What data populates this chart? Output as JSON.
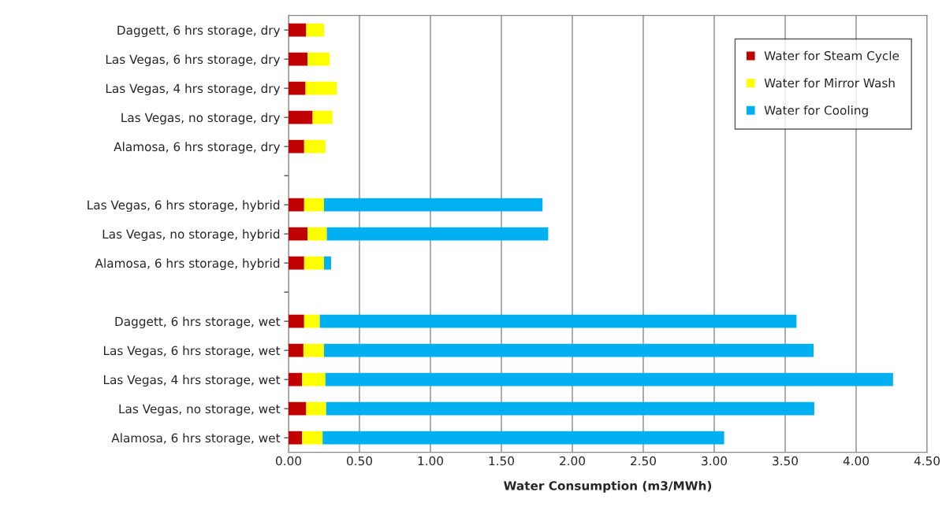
{
  "chart_data": {
    "type": "bar",
    "orientation": "horizontal",
    "stacked": true,
    "xlabel": "Water Consumption (m3/MWh)",
    "categories": [
      "Daggett, 6 hrs storage, dry",
      "Las Vegas, 6 hrs storage, dry",
      "Las Vegas, 4 hrs storage, dry",
      "Las Vegas, no storage, dry",
      "Alamosa, 6 hrs storage, dry",
      null,
      "Las Vegas, 6 hrs storage, hybrid",
      "Las Vegas, no storage, hybrid",
      "Alamosa, 6 hrs storage, hybrid",
      null,
      "Daggett, 6 hrs storage, wet",
      "Las Vegas, 6 hrs storage, wet",
      "Las Vegas, 4 hrs storage, wet",
      "Las Vegas, no storage, wet",
      "Alamosa, 6 hrs storage, wet"
    ],
    "series": [
      {
        "name": "Water for Steam Cycle",
        "color": "#c00000",
        "values": [
          0.125,
          0.135,
          0.12,
          0.17,
          0.11,
          null,
          0.11,
          0.135,
          0.11,
          null,
          0.11,
          0.105,
          0.095,
          0.125,
          0.095
        ]
      },
      {
        "name": "Water for Mirror Wash",
        "color": "#ffff00",
        "values": [
          0.125,
          0.155,
          0.22,
          0.14,
          0.15,
          null,
          0.14,
          0.135,
          0.14,
          null,
          0.11,
          0.145,
          0.165,
          0.14,
          0.145
        ]
      },
      {
        "name": "Water for Cooling",
        "color": "#00b0f0",
        "values": [
          null,
          null,
          null,
          null,
          null,
          null,
          1.54,
          1.56,
          0.05,
          null,
          3.36,
          3.45,
          4.0,
          3.44,
          2.83
        ]
      }
    ],
    "xlim": [
      0,
      4.5
    ],
    "xticks": [
      {
        "value": 0,
        "label": "0.00"
      },
      {
        "value": 0.5,
        "label": "0.50"
      },
      {
        "value": 1,
        "label": "1.00"
      },
      {
        "value": 1.5,
        "label": "1.50"
      },
      {
        "value": 2,
        "label": "2.00"
      },
      {
        "value": 2.5,
        "label": "2.50"
      },
      {
        "value": 3,
        "label": "3.00"
      },
      {
        "value": 3.5,
        "label": "3.50"
      },
      {
        "value": 4,
        "label": "4.00"
      },
      {
        "value": 4.5,
        "label": "4.50"
      }
    ],
    "grid": "x",
    "legend": "top right"
  }
}
